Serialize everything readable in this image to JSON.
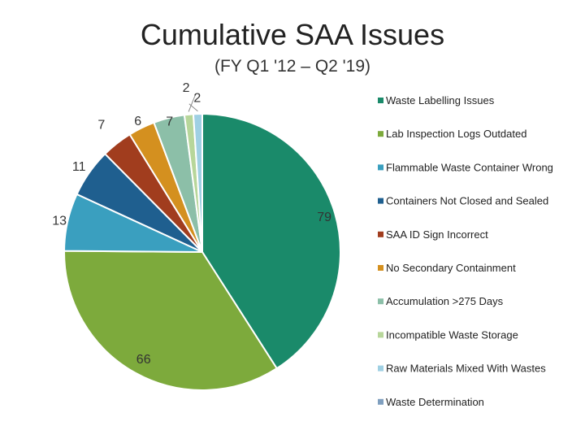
{
  "chart_data": {
    "type": "pie",
    "title": "Cumulative SAA Issues",
    "subtitle": "(FY Q1 '12 – Q2 '19)",
    "categories": [
      "Waste Labelling Issues",
      "Lab Inspection Logs Outdated",
      "Flammable Waste Container Wrong",
      "Containers Not Closed and Sealed",
      "SAA ID Sign Incorrect",
      "No Secondary Containment",
      "Accumulation >275 Days",
      "Incompatible Waste Storage",
      "Raw Materials Mixed With Wastes",
      "Waste Determination"
    ],
    "values": [
      79,
      66,
      13,
      11,
      7,
      6,
      7,
      2,
      2,
      0
    ],
    "data_labels": [
      "79",
      "66",
      "13",
      "11",
      "7",
      "6",
      "7",
      "2",
      "2",
      ""
    ],
    "colors": [
      "#1a8a6a",
      "#7daa3c",
      "#3a9fbf",
      "#1f5f8f",
      "#a13d1e",
      "#d4901f",
      "#8cbfa8",
      "#b7d69a",
      "#9fd0e3",
      "#7f9fbf"
    ],
    "legend_position": "right"
  }
}
